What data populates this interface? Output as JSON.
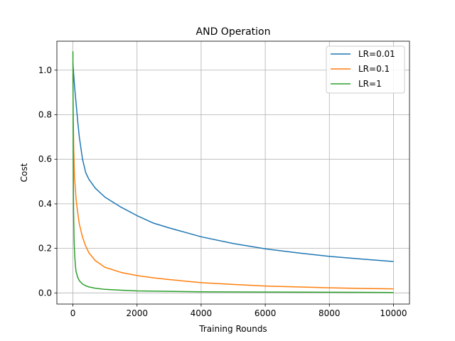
{
  "chart_data": {
    "type": "line",
    "title": "AND Operation",
    "xlabel": "Training Rounds",
    "ylabel": "Cost",
    "xlim": [
      -500,
      10500
    ],
    "ylim": [
      -0.05,
      1.13
    ],
    "xticks": [
      0,
      2000,
      4000,
      6000,
      8000,
      10000
    ],
    "yticks": [
      0.0,
      0.2,
      0.4,
      0.6,
      0.8,
      1.0
    ],
    "xtick_labels": [
      "0",
      "2000",
      "4000",
      "6000",
      "8000",
      "10000"
    ],
    "ytick_labels": [
      "0.0",
      "0.2",
      "0.4",
      "0.6",
      "0.8",
      "1.0"
    ],
    "grid": true,
    "legend_position": "upper-right",
    "series": [
      {
        "name": "LR=0.01",
        "color": "#1f77b4",
        "x": [
          0,
          25,
          50,
          100,
          150,
          200,
          300,
          400,
          500,
          700,
          1000,
          1500,
          2000,
          2500,
          3000,
          4000,
          5000,
          6000,
          7000,
          8000,
          9000,
          10000
        ],
        "y": [
          1.03,
          0.98,
          0.93,
          0.85,
          0.77,
          0.7,
          0.6,
          0.54,
          0.51,
          0.47,
          0.43,
          0.385,
          0.347,
          0.314,
          0.292,
          0.252,
          0.222,
          0.198,
          0.18,
          0.164,
          0.152,
          0.141
        ]
      },
      {
        "name": "LR=0.1",
        "color": "#ff7f0e",
        "x": [
          0,
          10,
          25,
          50,
          100,
          150,
          200,
          300,
          400,
          500,
          700,
          1000,
          1500,
          2000,
          2500,
          3000,
          4000,
          5000,
          6000,
          7000,
          8000,
          9000,
          10000
        ],
        "y": [
          0.98,
          0.8,
          0.65,
          0.52,
          0.42,
          0.36,
          0.31,
          0.25,
          0.21,
          0.18,
          0.145,
          0.115,
          0.092,
          0.078,
          0.068,
          0.06,
          0.046,
          0.038,
          0.031,
          0.027,
          0.023,
          0.02,
          0.018
        ]
      },
      {
        "name": "LR=1",
        "color": "#2ca02c",
        "x": [
          0,
          3,
          10,
          20,
          40,
          60,
          80,
          100,
          150,
          200,
          300,
          400,
          500,
          700,
          1000,
          1500,
          2000,
          3000,
          4000,
          6000,
          8000,
          10000
        ],
        "y": [
          1.085,
          0.95,
          0.6,
          0.37,
          0.22,
          0.16,
          0.12,
          0.095,
          0.07,
          0.055,
          0.04,
          0.032,
          0.027,
          0.021,
          0.016,
          0.012,
          0.009,
          0.007,
          0.005,
          0.004,
          0.003,
          0.002
        ]
      }
    ]
  }
}
